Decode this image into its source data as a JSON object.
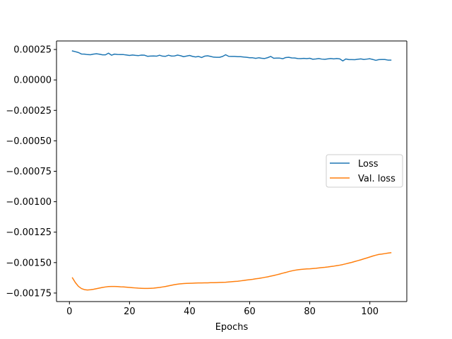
{
  "chart_data": {
    "type": "line",
    "title": "",
    "xlabel": "Epochs",
    "ylabel": "",
    "xlim": [
      -4.3,
      112.3
    ],
    "ylim": [
      -0.00182,
      0.00032
    ],
    "xticks": [
      0,
      20,
      40,
      60,
      80,
      100
    ],
    "xtick_labels": [
      "0",
      "20",
      "40",
      "60",
      "80",
      "100"
    ],
    "yticks": [
      0.00025,
      0.0,
      -0.00025,
      -0.0005,
      -0.00075,
      -0.001,
      -0.00125,
      -0.0015,
      -0.00175
    ],
    "ytick_labels": [
      "0.00025",
      "0.00000",
      "−0.00025",
      "−0.00050",
      "−0.00075",
      "−0.00100",
      "−0.00125",
      "−0.00150",
      "−0.00175"
    ],
    "grid": false,
    "legend_position": "center-right",
    "series": [
      {
        "name": "Loss",
        "color": "#1f77b4",
        "x": [
          1,
          2,
          3,
          4,
          5,
          6,
          7,
          8,
          9,
          10,
          11,
          12,
          13,
          14,
          15,
          16,
          17,
          18,
          19,
          20,
          21,
          22,
          23,
          24,
          25,
          26,
          27,
          28,
          29,
          30,
          31,
          32,
          33,
          34,
          35,
          36,
          37,
          38,
          39,
          40,
          41,
          42,
          43,
          44,
          45,
          46,
          47,
          48,
          49,
          50,
          51,
          52,
          53,
          54,
          55,
          56,
          57,
          58,
          59,
          60,
          61,
          62,
          63,
          64,
          65,
          66,
          67,
          68,
          69,
          70,
          71,
          72,
          73,
          74,
          75,
          76,
          77,
          78,
          79,
          80,
          81,
          82,
          83,
          84,
          85,
          86,
          87,
          88,
          89,
          90,
          91,
          92,
          93,
          94,
          95,
          96,
          97,
          98,
          99,
          100,
          101,
          102,
          103,
          104,
          105,
          106,
          107
        ],
        "y": [
          0.000238,
          0.000232,
          0.000225,
          0.000213,
          0.000212,
          0.000208,
          0.000207,
          0.000212,
          0.000215,
          0.000211,
          0.000206,
          0.000206,
          0.00022,
          0.000203,
          0.000212,
          0.000209,
          0.000208,
          0.000208,
          0.000205,
          0.000201,
          0.000205,
          0.000202,
          0.0002,
          0.000204,
          0.000203,
          0.000194,
          0.000196,
          0.000197,
          0.000195,
          0.000203,
          0.000195,
          0.000194,
          0.000203,
          0.000196,
          0.000197,
          0.000204,
          0.000199,
          0.000191,
          0.000196,
          0.000201,
          0.000193,
          0.000189,
          0.000193,
          0.000184,
          0.000195,
          0.000198,
          0.000193,
          0.000187,
          0.000186,
          0.000186,
          0.000193,
          0.000207,
          0.000194,
          0.000193,
          0.000193,
          0.000191,
          0.000191,
          0.000188,
          0.000186,
          0.000182,
          0.000182,
          0.000177,
          0.000182,
          0.000178,
          0.000176,
          0.000183,
          0.000193,
          0.000178,
          0.000179,
          0.000179,
          0.000174,
          0.000184,
          0.000186,
          0.000181,
          0.00018,
          0.000176,
          0.000175,
          0.000177,
          0.000175,
          0.000178,
          0.00017,
          0.000172,
          0.000176,
          0.000171,
          0.000169,
          0.000173,
          0.000176,
          0.000173,
          0.000176,
          0.000173,
          0.000156,
          0.000172,
          0.000167,
          0.000167,
          0.000166,
          0.00017,
          0.000173,
          0.000168,
          0.000171,
          0.000174,
          0.000168,
          0.000161,
          0.000167,
          0.000168,
          0.000168,
          0.000163,
          0.000163
        ]
      },
      {
        "name": "Val. loss",
        "color": "#ff7f0e",
        "x": [
          1,
          2,
          3,
          4,
          5,
          6,
          7,
          8,
          9,
          10,
          11,
          12,
          13,
          14,
          15,
          16,
          17,
          18,
          19,
          20,
          21,
          22,
          23,
          24,
          25,
          26,
          27,
          28,
          29,
          30,
          31,
          32,
          33,
          34,
          35,
          36,
          37,
          38,
          39,
          40,
          41,
          42,
          43,
          44,
          45,
          46,
          47,
          48,
          49,
          50,
          51,
          52,
          53,
          54,
          55,
          56,
          57,
          58,
          59,
          60,
          61,
          62,
          63,
          64,
          65,
          66,
          67,
          68,
          69,
          70,
          71,
          72,
          73,
          74,
          75,
          76,
          77,
          78,
          79,
          80,
          81,
          82,
          83,
          84,
          85,
          86,
          87,
          88,
          89,
          90,
          91,
          92,
          93,
          94,
          95,
          96,
          97,
          98,
          99,
          100,
          101,
          102,
          103,
          104,
          105,
          106,
          107
        ],
        "y": [
          -0.001625,
          -0.001665,
          -0.001695,
          -0.001713,
          -0.001722,
          -0.001725,
          -0.001723,
          -0.001719,
          -0.001714,
          -0.001709,
          -0.001704,
          -0.0017,
          -0.001697,
          -0.001696,
          -0.001696,
          -0.001697,
          -0.001699,
          -0.0017,
          -0.001702,
          -0.001704,
          -0.001706,
          -0.001708,
          -0.00171,
          -0.001711,
          -0.001712,
          -0.001712,
          -0.001711,
          -0.00171,
          -0.001707,
          -0.001704,
          -0.0017,
          -0.001696,
          -0.001691,
          -0.001686,
          -0.001681,
          -0.001677,
          -0.001674,
          -0.001672,
          -0.001671,
          -0.00167,
          -0.001669,
          -0.001668,
          -0.001667,
          -0.001667,
          -0.001666,
          -0.001666,
          -0.001665,
          -0.001665,
          -0.001664,
          -0.001663,
          -0.001662,
          -0.001661,
          -0.001659,
          -0.001657,
          -0.001655,
          -0.001653,
          -0.00165,
          -0.001647,
          -0.001643,
          -0.00164,
          -0.001637,
          -0.001633,
          -0.00163,
          -0.001626,
          -0.001621,
          -0.001617,
          -0.001611,
          -0.001606,
          -0.0016,
          -0.001594,
          -0.001587,
          -0.001581,
          -0.001574,
          -0.001568,
          -0.001563,
          -0.001559,
          -0.001556,
          -0.001554,
          -0.001552,
          -0.001551,
          -0.001549,
          -0.001547,
          -0.001544,
          -0.001541,
          -0.001539,
          -0.001536,
          -0.001532,
          -0.001529,
          -0.001525,
          -0.001521,
          -0.001516,
          -0.00151,
          -0.001504,
          -0.001498,
          -0.001491,
          -0.001484,
          -0.001477,
          -0.001469,
          -0.001462,
          -0.001454,
          -0.001446,
          -0.001439,
          -0.001433,
          -0.00143,
          -0.001426,
          -0.001422,
          -0.001419
        ]
      }
    ]
  }
}
